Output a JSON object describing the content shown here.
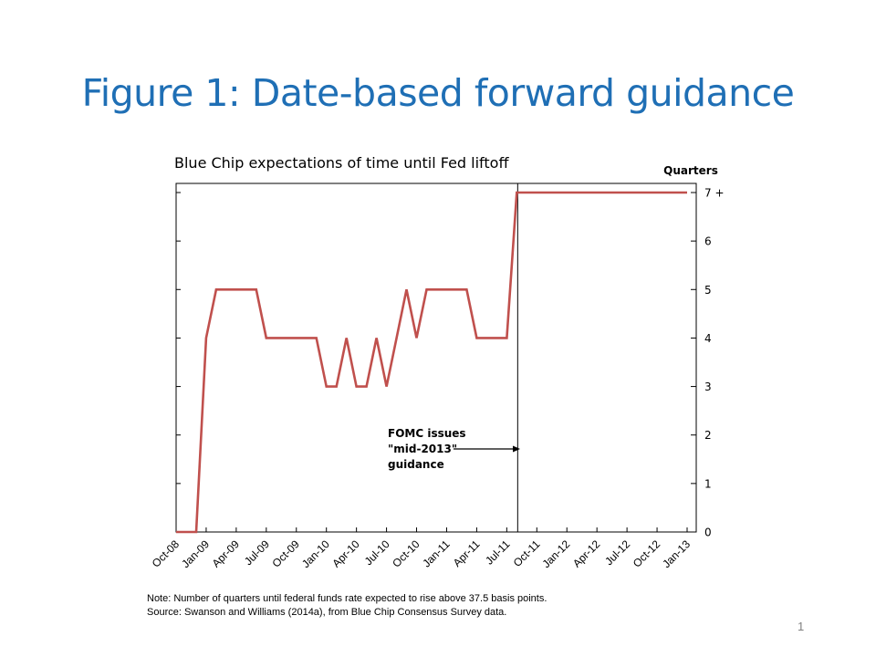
{
  "slide": {
    "title": "Figure 1: Date-based forward guidance",
    "note": "Note: Number of quarters until federal funds rate expected to rise above 37.5 basis points.",
    "source": "Source: Swanson and Williams (2014a), from Blue Chip Consensus Survey data.",
    "page_number": "1"
  },
  "colors": {
    "title": "#1f6fb5",
    "line": "#c0504d",
    "axis": "#000000"
  },
  "chart_data": {
    "type": "line",
    "title": "Blue Chip expectations of time until Fed liftoff",
    "ylabel": "Quarters",
    "ylim": [
      0,
      7
    ],
    "y_ticks": [
      {
        "value": 0,
        "label": "0"
      },
      {
        "value": 1,
        "label": "1"
      },
      {
        "value": 2,
        "label": "2"
      },
      {
        "value": 3,
        "label": "3"
      },
      {
        "value": 4,
        "label": "4"
      },
      {
        "value": 5,
        "label": "5"
      },
      {
        "value": 6,
        "label": "6"
      },
      {
        "value": 7,
        "label": "7 +"
      }
    ],
    "x_tick_labels": [
      "Oct-08",
      "Jan-09",
      "Apr-09",
      "Jul-09",
      "Oct-09",
      "Jan-10",
      "Apr-10",
      "Jul-10",
      "Oct-10",
      "Jan-11",
      "Apr-11",
      "Jul-11",
      "Oct-11",
      "Jan-12",
      "Apr-12",
      "Jul-12",
      "Oct-12",
      "Jan-13"
    ],
    "x_range": [
      "2008-10",
      "2013-01"
    ],
    "grid": false,
    "series": [
      {
        "x": [
          "2008-10",
          "2008-11",
          "2008-12",
          "2009-01",
          "2009-02",
          "2009-03",
          "2009-04",
          "2009-05",
          "2009-06",
          "2009-07",
          "2009-08",
          "2009-09",
          "2009-10",
          "2009-11",
          "2009-12",
          "2010-01",
          "2010-02",
          "2010-03",
          "2010-04",
          "2010-05",
          "2010-06",
          "2010-07",
          "2010-08",
          "2010-09",
          "2010-10",
          "2010-11",
          "2010-12",
          "2011-01",
          "2011-02",
          "2011-03",
          "2011-04",
          "2011-05",
          "2011-06",
          "2011-07",
          "2011-08",
          "2011-09",
          "2011-10",
          "2011-11",
          "2011-12",
          "2012-01",
          "2012-02",
          "2012-03",
          "2012-04",
          "2012-05",
          "2012-06",
          "2012-07",
          "2012-08",
          "2012-09",
          "2012-10",
          "2012-11",
          "2012-12",
          "2013-01"
        ],
        "values": [
          0,
          0,
          0,
          4,
          5,
          5,
          5,
          5,
          5,
          4,
          4,
          4,
          4,
          4,
          4,
          3,
          3,
          4,
          3,
          3,
          4,
          3,
          4,
          5,
          4,
          5,
          5,
          5,
          5,
          5,
          4,
          4,
          4,
          4,
          7,
          7,
          7,
          7,
          7,
          7,
          7,
          7,
          7,
          7,
          7,
          7,
          7,
          7,
          7,
          7,
          7,
          7
        ]
      }
    ],
    "annotations": [
      {
        "text_lines": [
          "FOMC issues",
          "\"mid-2013\"",
          "guidance"
        ],
        "arrow_to": "2011-08"
      }
    ],
    "vertical_line_at": "2011-08"
  }
}
